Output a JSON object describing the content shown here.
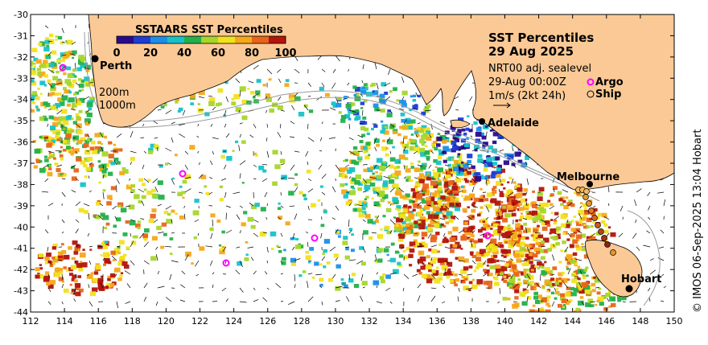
{
  "colorbar": {
    "title": "SSTAARS SST Percentiles",
    "ticks": [
      "0",
      "20",
      "40",
      "60",
      "80",
      "100"
    ],
    "colors": [
      "#2a0a8c",
      "#1c3dd6",
      "#1b8fe8",
      "#16c2c8",
      "#22b04a",
      "#a6d62a",
      "#f2e21c",
      "#f5a81a",
      "#e8641a",
      "#b3140c"
    ]
  },
  "title": {
    "line1": "SST Percentiles",
    "line2": "29 Aug 2025"
  },
  "info": {
    "line1": "NRT00 adj. sealevel",
    "line2": "29-Aug 00:00Z",
    "line3": "1m/s (2kt 24h)"
  },
  "legend": {
    "argo": "Argo",
    "ship": "Ship"
  },
  "isobaths": {
    "shallow": "200m",
    "deep": "1000m"
  },
  "cities": {
    "perth": "Perth",
    "adelaide": "Adelaide",
    "melbourne": "Melbourne",
    "hobart": "Hobart"
  },
  "credit": "© IMOS 06-Sep-2025 13:04 Hobart",
  "axes": {
    "x_ticks": [
      "112",
      "114",
      "116",
      "118",
      "120",
      "122",
      "124",
      "126",
      "128",
      "130",
      "132",
      "134",
      "136",
      "138",
      "140",
      "142",
      "144",
      "146",
      "148",
      "150"
    ],
    "y_ticks": [
      "-30",
      "-31",
      "-32",
      "-33",
      "-34",
      "-35",
      "-36",
      "-37",
      "-38",
      "-39",
      "-40",
      "-41",
      "-42",
      "-43",
      "-44"
    ]
  },
  "colors": {
    "land": "#fbc995",
    "ocean": "#ffffff",
    "argo": "#ff00ff",
    "ship": "#000000"
  }
}
